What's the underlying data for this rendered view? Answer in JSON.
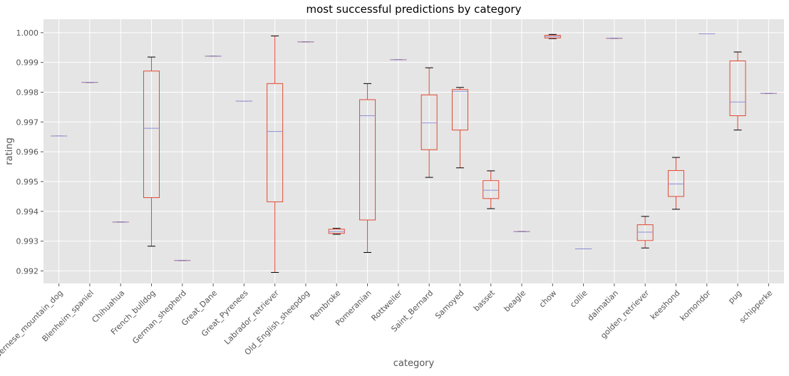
{
  "colors": {
    "plot_background": "#e5e5e5",
    "grid": "#ffffff",
    "box": "#e24a33",
    "median": "#8f8fd8",
    "whisker_cap": "#000000",
    "text": "#555555",
    "title_text": "#000000"
  },
  "chart_data": {
    "type": "boxplot",
    "title": "most successful predictions by category",
    "xlabel": "category",
    "ylabel": "rating",
    "ylim": [
      0.99158,
      1.00045
    ],
    "yticks": [
      0.992,
      0.993,
      0.994,
      0.995,
      0.996,
      0.997,
      0.998,
      0.999,
      1.0
    ],
    "ytick_labels": [
      "0.992",
      "0.993",
      "0.994",
      "0.995",
      "0.996",
      "0.997",
      "0.998",
      "0.999",
      "1.000"
    ],
    "grid": true,
    "categories": [
      "Bernese_mountain_dog",
      "Blenheim_spaniel",
      "Chihuahua",
      "French_bulldog",
      "German_shepherd",
      "Great_Dane",
      "Great_Pyrenees",
      "Labrador_retriever",
      "Old_English_sheepdog",
      "Pembroke",
      "Pomeranian",
      "Rottweiler",
      "Saint_Bernard",
      "Samoyed",
      "basset",
      "beagle",
      "chow",
      "collie",
      "dalmatian",
      "golden_retriever",
      "keeshond",
      "komondor",
      "pug",
      "schipperke"
    ],
    "boxes": [
      {
        "category": "Bernese_mountain_dog",
        "whislo": 0.99653,
        "q1": 0.99653,
        "med": 0.99653,
        "q3": 0.99653,
        "whishi": 0.99653
      },
      {
        "category": "Blenheim_spaniel",
        "whislo": 0.99833,
        "q1": 0.99833,
        "med": 0.99833,
        "q3": 0.99833,
        "whishi": 0.99833
      },
      {
        "category": "Chihuahua",
        "whislo": 0.99364,
        "q1": 0.99364,
        "med": 0.99364,
        "q3": 0.99364,
        "whishi": 0.99364
      },
      {
        "category": "French_bulldog",
        "whislo": 0.99283,
        "q1": 0.99446,
        "med": 0.99679,
        "q3": 0.99871,
        "whishi": 0.99918
      },
      {
        "category": "German_shepherd",
        "whislo": 0.99235,
        "q1": 0.99235,
        "med": 0.99235,
        "q3": 0.99235,
        "whishi": 0.99235
      },
      {
        "category": "Great_Dane",
        "whislo": 0.99921,
        "q1": 0.99921,
        "med": 0.99921,
        "q3": 0.99921,
        "whishi": 0.99921
      },
      {
        "category": "Great_Pyrenees",
        "whislo": 0.9977,
        "q1": 0.9977,
        "med": 0.9977,
        "q3": 0.9977,
        "whishi": 0.9977
      },
      {
        "category": "Labrador_retriever",
        "whislo": 0.99195,
        "q1": 0.99432,
        "med": 0.99668,
        "q3": 0.99829,
        "whishi": 0.99989
      },
      {
        "category": "Old_English_sheepdog",
        "whislo": 0.99969,
        "q1": 0.99969,
        "med": 0.99969,
        "q3": 0.99969,
        "whishi": 0.99969
      },
      {
        "category": "Pembroke",
        "whislo": 0.99323,
        "q1": 0.99326,
        "med": 0.99332,
        "q3": 0.9934,
        "whishi": 0.99343
      },
      {
        "category": "Pomeranian",
        "whislo": 0.99262,
        "q1": 0.99371,
        "med": 0.99721,
        "q3": 0.99775,
        "whishi": 0.99829
      },
      {
        "category": "Rottweiler",
        "whislo": 0.99909,
        "q1": 0.99909,
        "med": 0.99909,
        "q3": 0.99909,
        "whishi": 0.99909
      },
      {
        "category": "Saint_Bernard",
        "whislo": 0.99514,
        "q1": 0.99607,
        "med": 0.99697,
        "q3": 0.99791,
        "whishi": 0.99882
      },
      {
        "category": "Samoyed",
        "whislo": 0.99546,
        "q1": 0.99673,
        "med": 0.99803,
        "q3": 0.99809,
        "whishi": 0.99816
      },
      {
        "category": "basset",
        "whislo": 0.99409,
        "q1": 0.99443,
        "med": 0.99471,
        "q3": 0.99503,
        "whishi": 0.99536
      },
      {
        "category": "beagle",
        "whislo": 0.99332,
        "q1": 0.99332,
        "med": 0.99332,
        "q3": 0.99332,
        "whishi": 0.99332
      },
      {
        "category": "chow",
        "whislo": 0.9998,
        "q1": 0.99982,
        "med": 0.99987,
        "q3": 0.99991,
        "whishi": 0.99994
      },
      {
        "category": "collie",
        "whislo": 0.99274,
        "q1": 0.99274,
        "med": 0.99274,
        "q3": 0.99274,
        "whishi": 0.99274
      },
      {
        "category": "dalmatian",
        "whislo": 0.99981,
        "q1": 0.99981,
        "med": 0.99981,
        "q3": 0.99981,
        "whishi": 0.99981
      },
      {
        "category": "golden_retriever",
        "whislo": 0.99277,
        "q1": 0.99302,
        "med": 0.9933,
        "q3": 0.99355,
        "whishi": 0.99383
      },
      {
        "category": "keeshond",
        "whislo": 0.99407,
        "q1": 0.9945,
        "med": 0.99492,
        "q3": 0.99537,
        "whishi": 0.99581
      },
      {
        "category": "komondor",
        "whislo": 0.99996,
        "q1": 0.99996,
        "med": 0.99996,
        "q3": 0.99996,
        "whishi": 0.99996
      },
      {
        "category": "pug",
        "whislo": 0.99673,
        "q1": 0.99721,
        "med": 0.99767,
        "q3": 0.99905,
        "whishi": 0.99935
      },
      {
        "category": "schipperke",
        "whislo": 0.99796,
        "q1": 0.99796,
        "med": 0.99796,
        "q3": 0.99796,
        "whishi": 0.99796
      }
    ]
  }
}
